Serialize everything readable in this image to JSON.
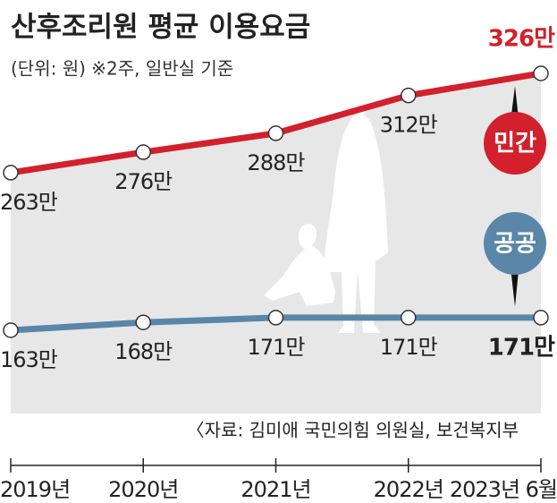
{
  "chart_data": {
    "type": "line",
    "title": "산후조리원 평균 이용요금",
    "subtitle": "(단위: 원) ※2주, 일반실 기준",
    "source": "〈자료: 김미애 국민의힘 의원실, 보건복지부",
    "categories": [
      "2019년",
      "2020년",
      "2021년",
      "2022년",
      "2023년 6월"
    ],
    "series": [
      {
        "name": "민간",
        "color": "#d2202c",
        "values": [
          263,
          276,
          288,
          312,
          326
        ],
        "value_labels": [
          "263만",
          "276만",
          "288만",
          "312만",
          "326만"
        ]
      },
      {
        "name": "공공",
        "color": "#5a86a8",
        "values": [
          163,
          168,
          171,
          171,
          171
        ],
        "value_labels": [
          "163만",
          "168만",
          "171만",
          "171만",
          "171만"
        ]
      }
    ]
  }
}
